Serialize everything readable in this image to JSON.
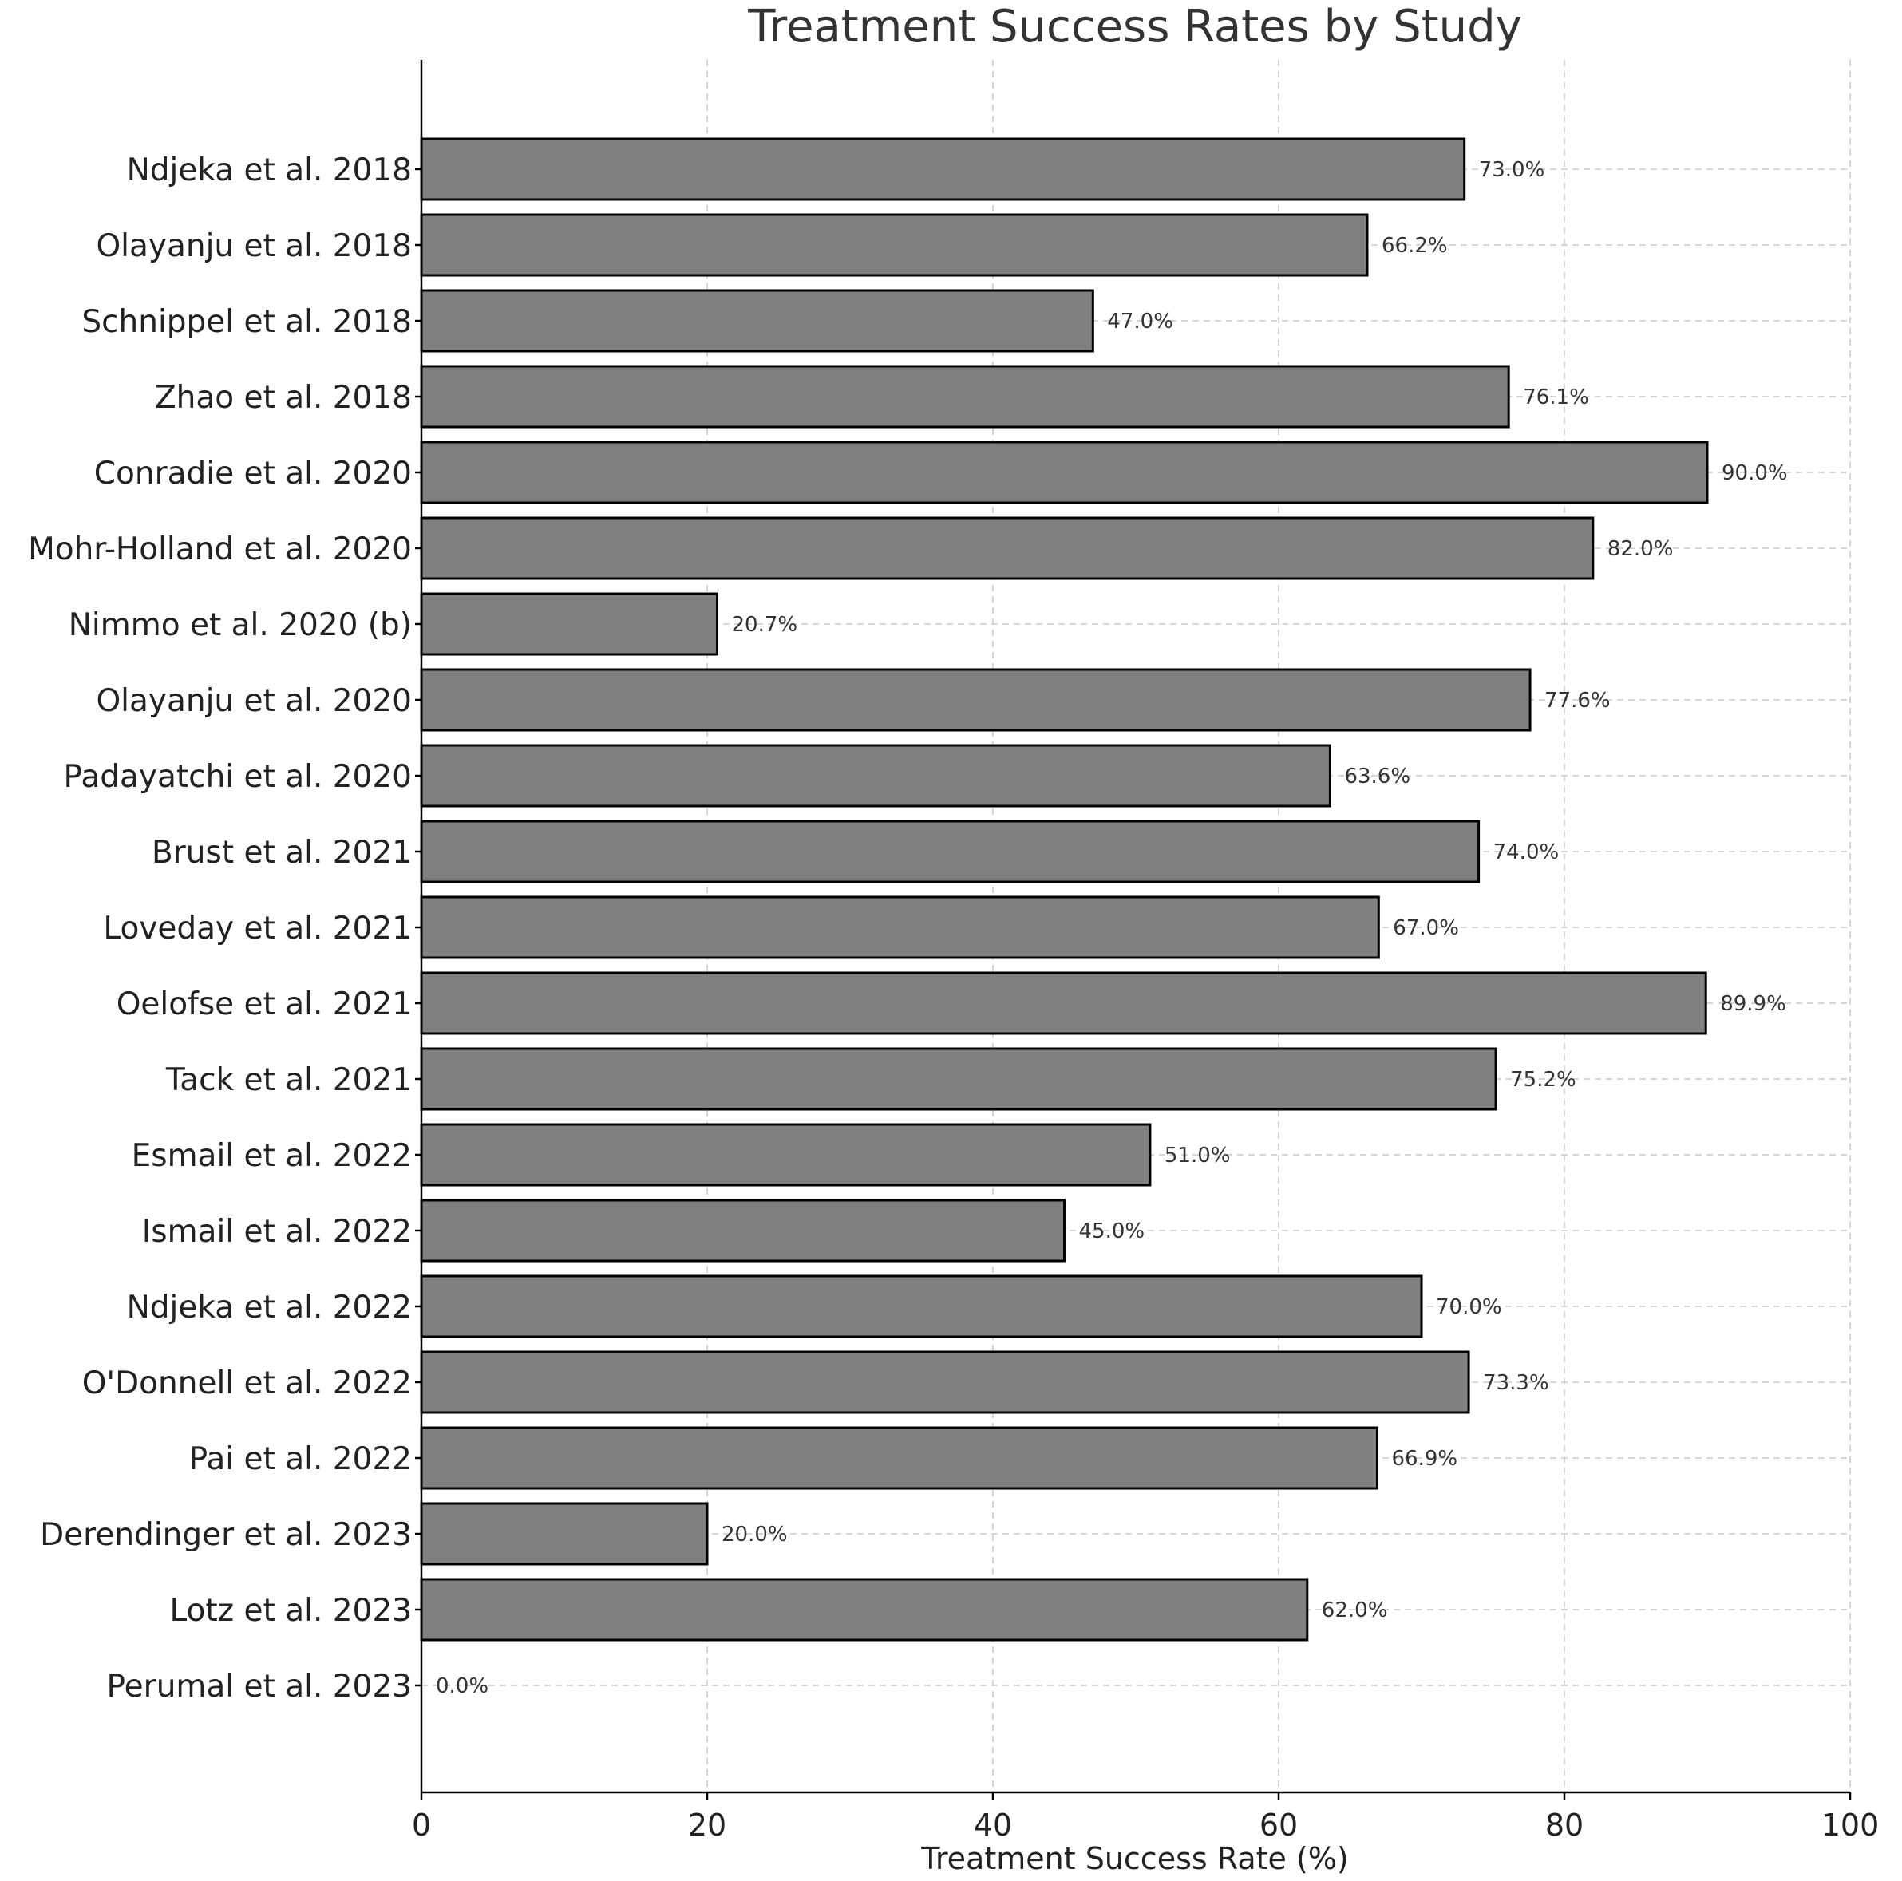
{
  "chart_data": {
    "type": "bar",
    "orientation": "horizontal",
    "title": "Treatment Success Rates by Study",
    "xlabel": "Treatment Success Rate (%)",
    "ylabel": "",
    "xlim": [
      0,
      100
    ],
    "xticks": [
      0,
      20,
      40,
      60,
      80,
      100
    ],
    "grid": true,
    "bar_color": "#808080",
    "categories": [
      "Ndjeka et al. 2018",
      "Olayanju et al. 2018",
      "Schnippel et al. 2018",
      "Zhao et al. 2018",
      "Conradie et al. 2020",
      "Mohr-Holland et al. 2020",
      "Nimmo et al. 2020 (b)",
      "Olayanju et al. 2020",
      "Padayatchi et al. 2020",
      "Brust et al. 2021",
      "Loveday et al. 2021",
      "Oelofse et al. 2021",
      "Tack et al. 2021",
      "Esmail et al. 2022",
      "Ismail et al. 2022",
      "Ndjeka et al. 2022",
      "O'Donnell et al. 2022",
      "Pai et al. 2022",
      "Derendinger et al. 2023",
      "Lotz et al. 2023",
      "Perumal et al. 2023"
    ],
    "values": [
      73.0,
      66.2,
      47.0,
      76.1,
      90.0,
      82.0,
      20.7,
      77.6,
      63.6,
      74.0,
      67.0,
      89.9,
      75.2,
      51.0,
      45.0,
      70.0,
      73.3,
      66.9,
      20.0,
      62.0,
      0.0
    ],
    "value_labels": [
      "73.0%",
      "66.2%",
      "47.0%",
      "76.1%",
      "90.0%",
      "82.0%",
      "20.7%",
      "77.6%",
      "63.6%",
      "74.0%",
      "67.0%",
      "89.9%",
      "75.2%",
      "51.0%",
      "45.0%",
      "70.0%",
      "73.3%",
      "66.9%",
      "20.0%",
      "62.0%",
      "0.0%"
    ]
  }
}
